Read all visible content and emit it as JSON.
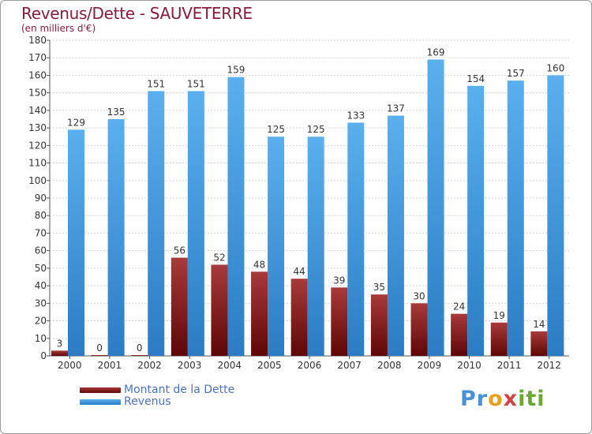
{
  "chart_data": {
    "type": "bar",
    "title": "Revenus/Dette - SAUVETERRE",
    "subtitle": "(en milliers d'€)",
    "xlabel": "",
    "ylabel": "",
    "ylim": [
      0,
      180
    ],
    "yticks": [
      0,
      10,
      20,
      30,
      40,
      50,
      60,
      70,
      80,
      90,
      100,
      110,
      120,
      130,
      140,
      150,
      160,
      170,
      180
    ],
    "grid": true,
    "legend_position": "bottom-left",
    "categories": [
      "2000",
      "2001",
      "2002",
      "2003",
      "2004",
      "2005",
      "2006",
      "2007",
      "2008",
      "2009",
      "2010",
      "2011",
      "2012"
    ],
    "series": [
      {
        "name": "Montant de la Dette",
        "color": "#7a1414",
        "values": [
          3,
          0,
          0,
          56,
          52,
          48,
          44,
          39,
          35,
          30,
          24,
          19,
          14
        ]
      },
      {
        "name": "Revenus",
        "color": "#4ea3e4",
        "values": [
          129,
          135,
          151,
          151,
          159,
          125,
          125,
          133,
          137,
          169,
          154,
          157,
          160
        ]
      }
    ]
  },
  "logo": {
    "text": "Proxiti",
    "parts": [
      "Pr",
      "o",
      "x",
      "iti"
    ]
  }
}
